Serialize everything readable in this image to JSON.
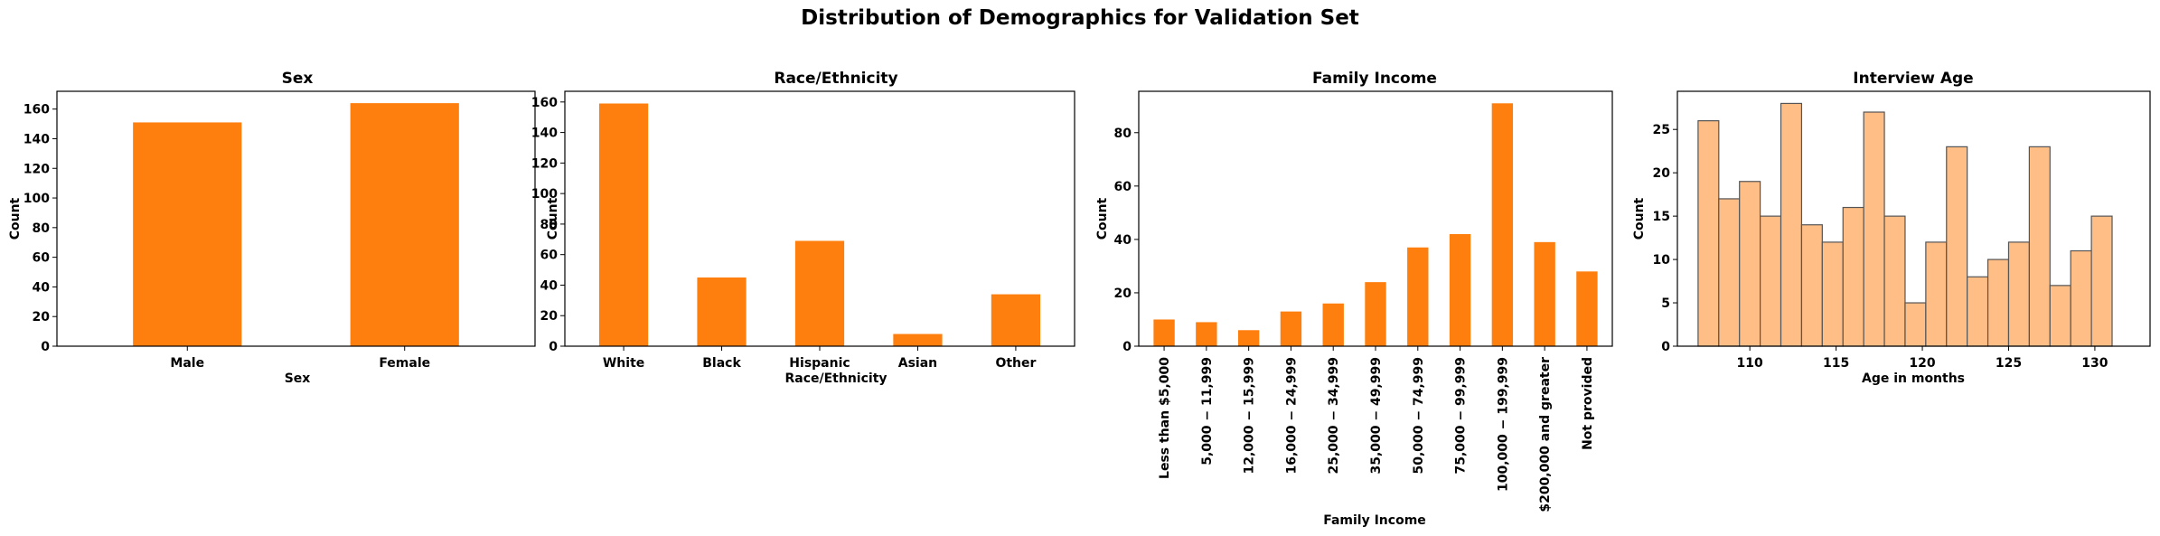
{
  "figure": {
    "suptitle": "Distribution of Demographics for Validation Set"
  },
  "colors": {
    "bar": "#ff7f0e",
    "hist_fill": "#ffbe86",
    "hist_edge": "#555555",
    "axis": "#000000"
  },
  "chart_data": [
    {
      "type": "bar",
      "title": "Sex",
      "xlabel": "Sex",
      "ylabel": "Count",
      "categories": [
        "Male",
        "Female"
      ],
      "values": [
        151,
        164
      ],
      "ylim": [
        0,
        172
      ],
      "yticks": [
        0,
        20,
        40,
        60,
        80,
        100,
        120,
        140,
        160
      ],
      "xtick_rotation": 0
    },
    {
      "type": "bar",
      "title": "Race/Ethnicity",
      "xlabel": "Race/Ethnicity",
      "ylabel": "Count",
      "categories": [
        "White",
        "Black",
        "Hispanic",
        "Asian",
        "Other"
      ],
      "values": [
        159,
        45,
        69,
        8,
        34
      ],
      "ylim": [
        0,
        167
      ],
      "yticks": [
        0,
        20,
        40,
        60,
        80,
        100,
        120,
        140,
        160
      ],
      "xtick_rotation": 0
    },
    {
      "type": "bar",
      "title": "Family Income",
      "xlabel": "Family Income",
      "ylabel": "Count",
      "categories": [
        "Less than $5,000",
        "5,000 − 11,999",
        "12,000 − 15,999",
        "16,000 − 24,999",
        "25,000 − 34,999",
        "35,000 − 49,999",
        "50,000 − 74,999",
        "75,000 − 99,999",
        "100,000 − 199,999",
        "$200,000 and greater",
        "Not provided"
      ],
      "values": [
        10,
        9,
        6,
        13,
        16,
        24,
        37,
        42,
        91,
        39,
        28
      ],
      "ylim": [
        0,
        95.5
      ],
      "yticks": [
        0,
        20,
        40,
        60,
        80
      ],
      "xtick_rotation": -90
    },
    {
      "type": "histogram",
      "title": "Interview Age",
      "xlabel": "Age in months",
      "ylabel": "Count",
      "bin_start": 107,
      "bin_width": 1.2,
      "values": [
        26,
        17,
        19,
        15,
        28,
        14,
        12,
        16,
        27,
        15,
        5,
        12,
        23,
        8,
        10,
        12,
        23,
        7,
        11,
        15
      ],
      "xlim": [
        105.8,
        133.2
      ],
      "ylim": [
        0,
        29.4
      ],
      "xticks": [
        110,
        115,
        120,
        125,
        130
      ],
      "yticks": [
        0,
        5,
        10,
        15,
        20,
        25
      ]
    }
  ]
}
